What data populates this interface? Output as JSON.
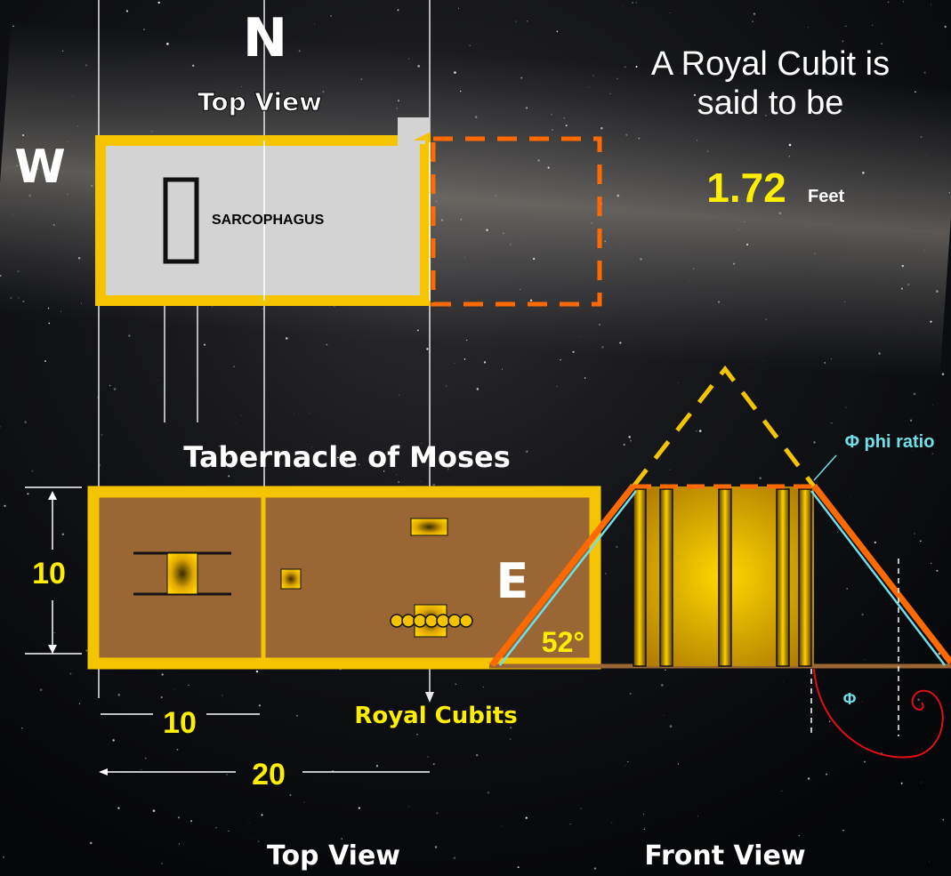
{
  "compass": {
    "north": "N",
    "west": "W",
    "east": "E"
  },
  "top_view": {
    "label": "Top View",
    "sarcophagus": "SARCOPHAGUS"
  },
  "royal_cubit": {
    "text": [
      "A Royal Cubit is",
      "said to be"
    ],
    "value": 1.72,
    "unit": "Feet"
  },
  "tabernacle": {
    "title": "Tabernacle of Moses",
    "width_label": 10,
    "length_small": 10,
    "length_full": 20,
    "unit": "Royal Cubits"
  },
  "pyramid": {
    "angle": "52°",
    "phi_ratio": "Φ phi ratio",
    "phi": "Φ"
  },
  "captions": {
    "top_view": "Top View",
    "front_view": "Front View"
  }
}
